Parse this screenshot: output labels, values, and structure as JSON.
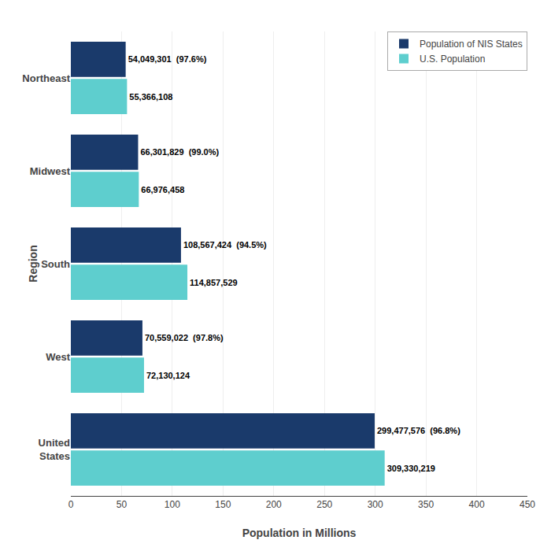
{
  "chart_data": {
    "type": "bar",
    "orientation": "horizontal",
    "categories": [
      "Northeast",
      "Midwest",
      "South",
      "West",
      "United\nStates"
    ],
    "series": [
      {
        "name": "Population of NIS States",
        "color": "#1a3a6b",
        "values": [
          54049301,
          66301829,
          108567424,
          70559022,
          299477576
        ],
        "value_labels": [
          "54,049,301  (97.6%)",
          "66,301,829  (99.0%)",
          "108,567,424  (94.5%)",
          "70,559,022  (97.8%)",
          "299,477,576  (96.8%)"
        ]
      },
      {
        "name": "U.S. Population",
        "color": "#5ecece",
        "values": [
          55366108,
          66976458,
          114857529,
          72130124,
          309330219
        ],
        "value_labels": [
          "55,366,108",
          "66,976,458",
          "114,857,529",
          "72,130,124",
          "309,330,219"
        ]
      }
    ],
    "xlabel": "Population in Millions",
    "ylabel": "Region",
    "xlim": [
      0,
      450000000
    ],
    "xticks": [
      0,
      {
        "value": 50000000,
        "label": "50"
      },
      {
        "value": 100000000,
        "label": "100"
      },
      {
        "value": 150000000,
        "label": "150"
      },
      {
        "value": 200000000,
        "label": "200"
      },
      {
        "value": 250000000,
        "label": "250"
      },
      {
        "value": 300000000,
        "label": "300"
      },
      {
        "value": 350000000,
        "label": "350"
      },
      {
        "value": 400000000,
        "label": "400"
      },
      {
        "value": 450000000,
        "label": "450"
      }
    ],
    "grid": true,
    "legend": "upper right",
    "data_labels": true
  }
}
